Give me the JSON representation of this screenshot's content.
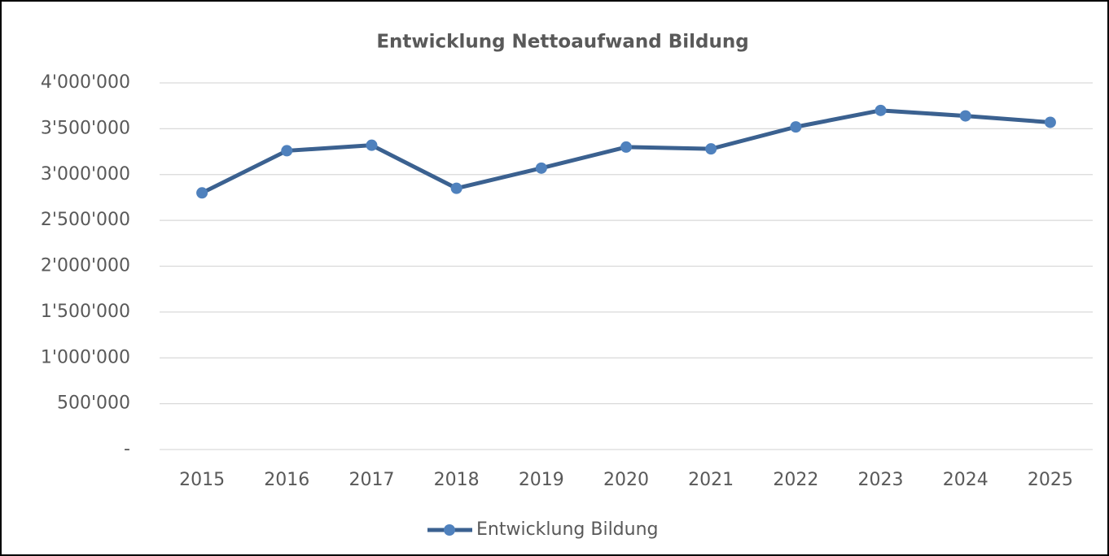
{
  "chart_data": {
    "type": "line",
    "title": "Entwicklung Nettoaufwand Bildung",
    "categories": [
      "2015",
      "2016",
      "2017",
      "2018",
      "2019",
      "2020",
      "2021",
      "2022",
      "2023",
      "2024",
      "2025"
    ],
    "series": [
      {
        "name": "Entwicklung Bildung",
        "color": "#3b6190",
        "marker_color": "#4f81bd",
        "values": [
          2800000,
          3260000,
          3320000,
          2850000,
          3070000,
          3300000,
          3280000,
          3520000,
          3700000,
          3640000,
          3570000
        ]
      }
    ],
    "ylim": [
      0,
      4000000
    ],
    "yticks": [
      {
        "value": 0,
        "label": "-"
      },
      {
        "value": 500000,
        "label": "500'000"
      },
      {
        "value": 1000000,
        "label": "1'000'000"
      },
      {
        "value": 1500000,
        "label": "1'500'000"
      },
      {
        "value": 2000000,
        "label": "2'000'000"
      },
      {
        "value": 2500000,
        "label": "2'500'000"
      },
      {
        "value": 3000000,
        "label": "3'000'000"
      },
      {
        "value": 3500000,
        "label": "3'500'000"
      },
      {
        "value": 4000000,
        "label": "4'000'000"
      }
    ],
    "grid": true,
    "legend": "bottom"
  }
}
